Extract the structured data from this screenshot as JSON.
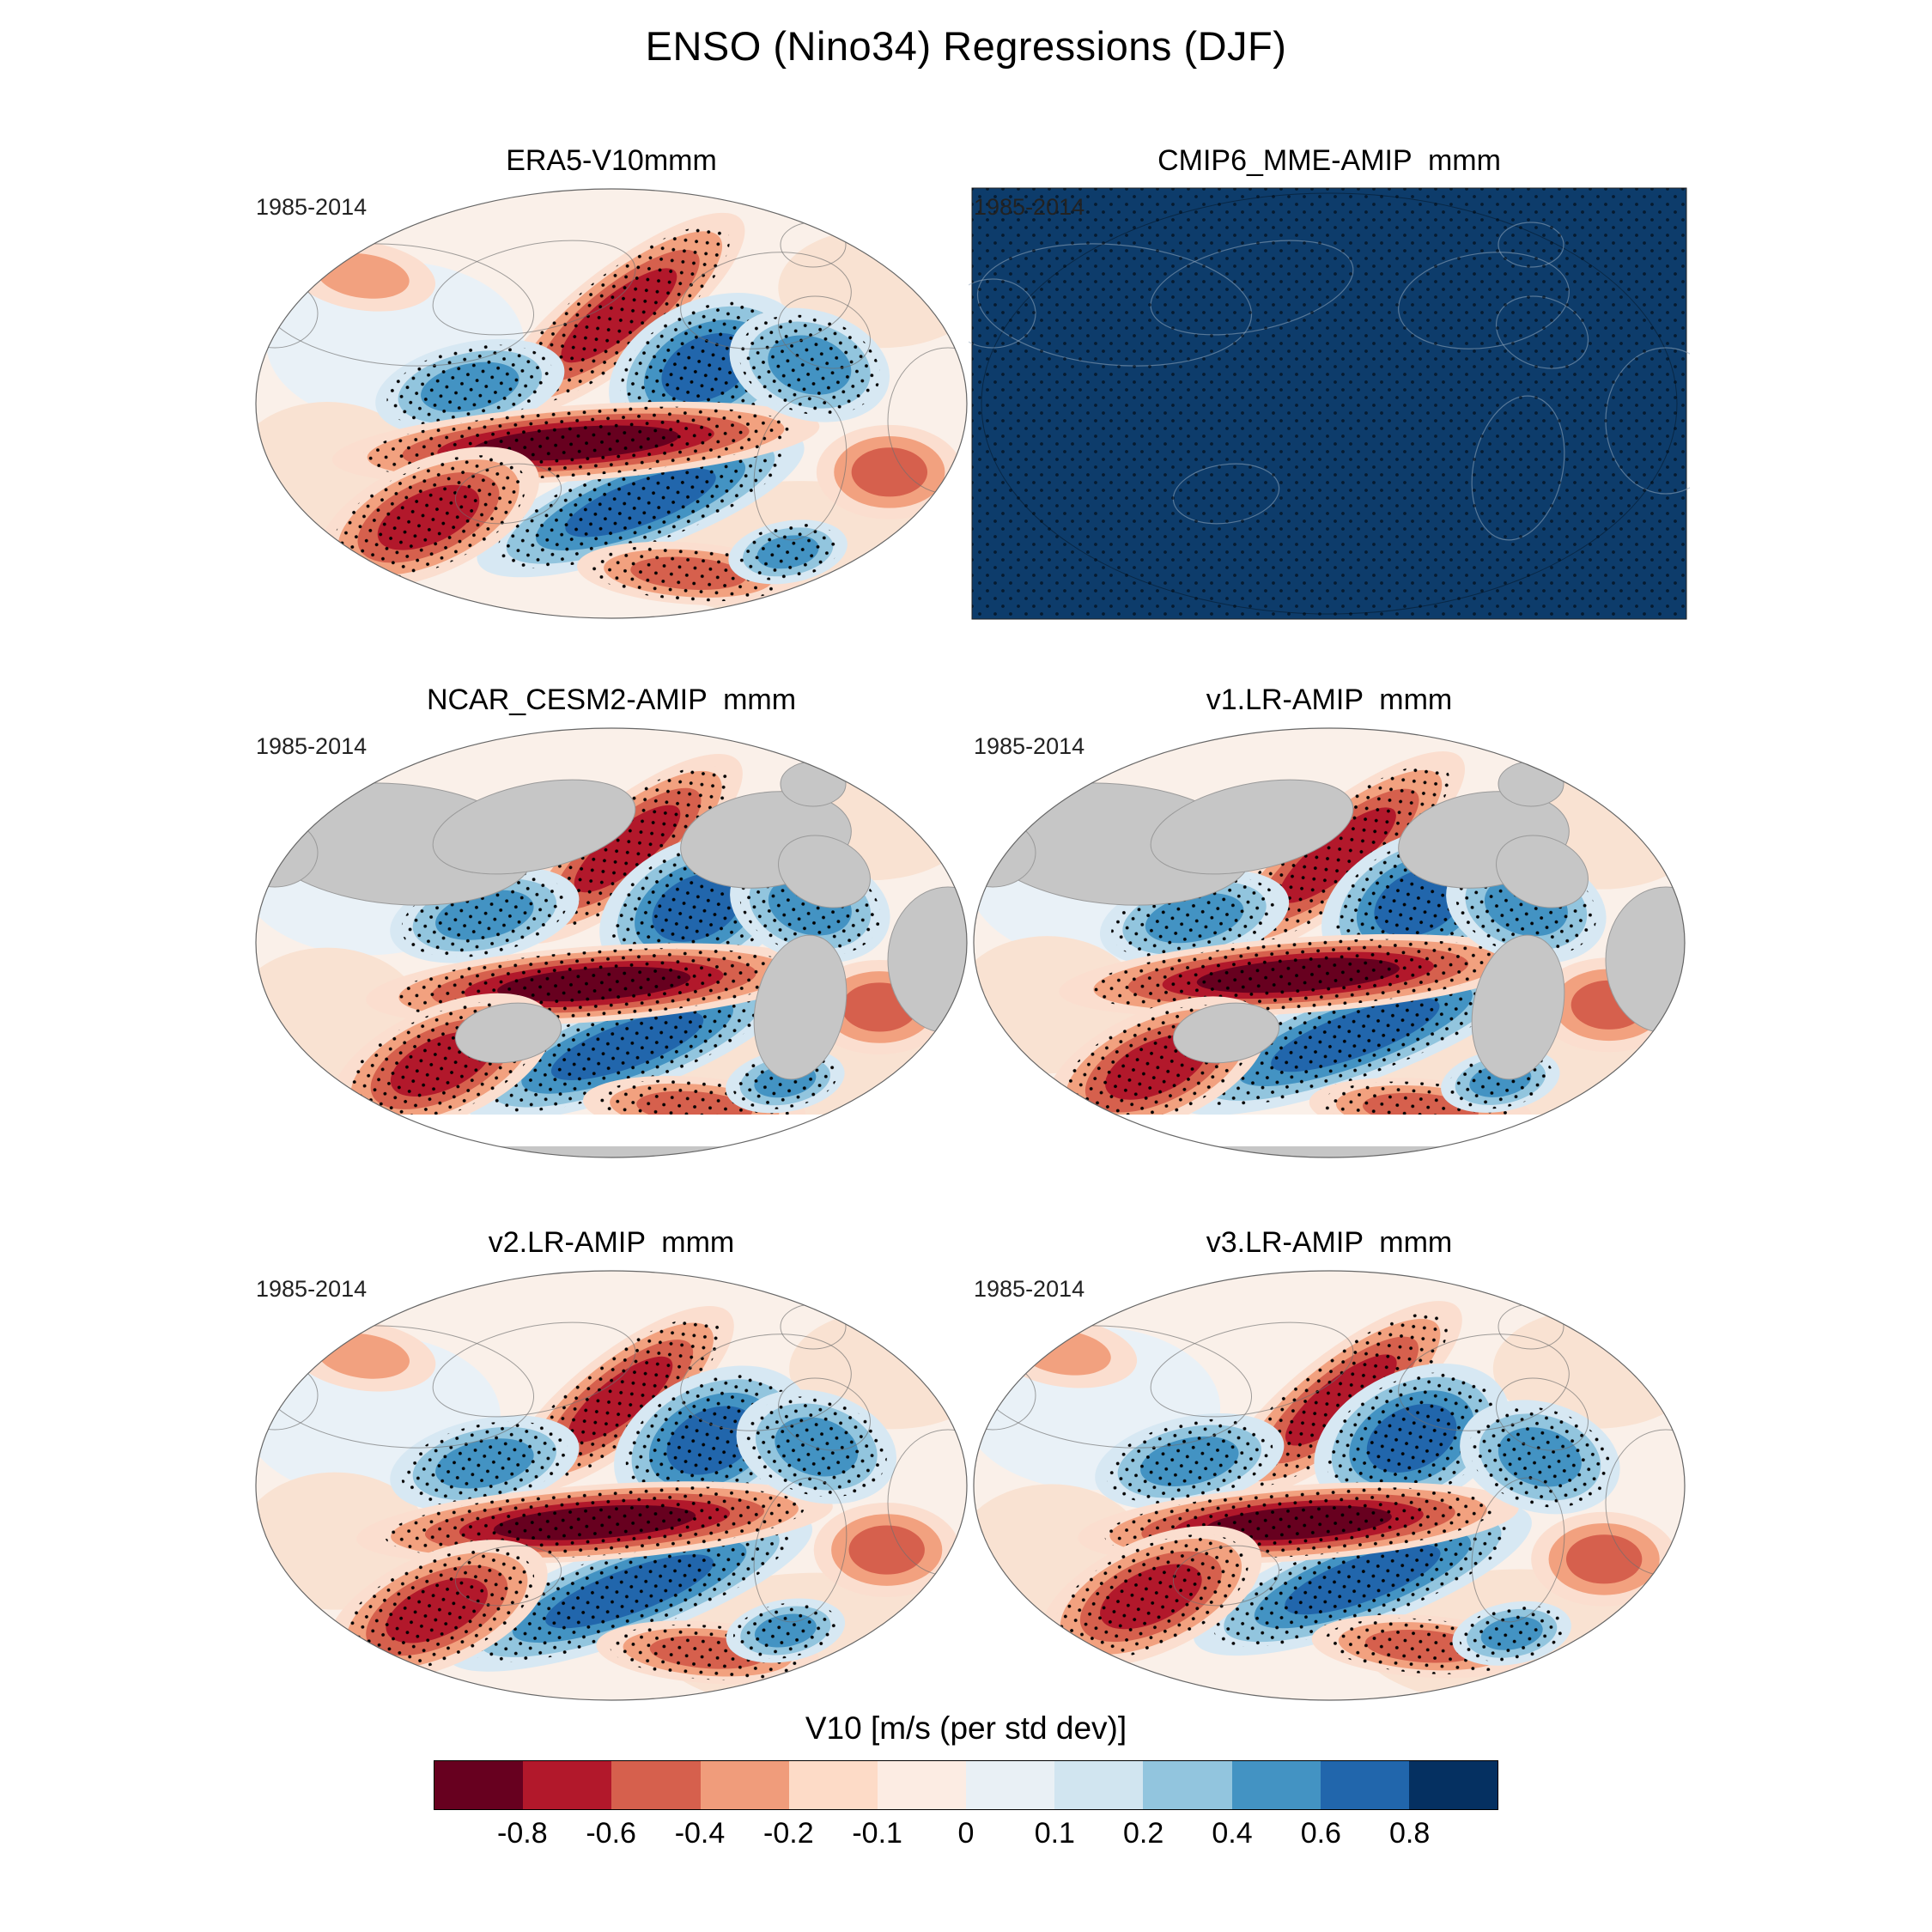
{
  "figure": {
    "title": "ENSO (Nino34) Regressions (DJF)"
  },
  "panels": [
    {
      "title": "ERA5-V10mmm",
      "period": "1985-2014",
      "variant": "plain"
    },
    {
      "title": "CMIP6_MME-AMIP  mmm",
      "period": "1985-2014",
      "variant": "solid"
    },
    {
      "title": "NCAR_CESM2-AMIP  mmm",
      "period": "1985-2014",
      "variant": "gray"
    },
    {
      "title": "v1.LR-AMIP  mmm",
      "period": "1985-2014",
      "variant": "gray"
    },
    {
      "title": "v2.LR-AMIP  mmm",
      "period": "1985-2014",
      "variant": "plain"
    },
    {
      "title": "v3.LR-AMIP  mmm",
      "period": "1985-2014",
      "variant": "plain"
    }
  ],
  "colorbar": {
    "label": "V10 [m/s (per std dev)]",
    "ticks": [
      "-0.8",
      "-0.6",
      "-0.4",
      "-0.2",
      "-0.1",
      "0",
      "0.1",
      "0.2",
      "0.4",
      "0.6",
      "0.8"
    ],
    "segment_colors": [
      "#67001f",
      "#b2182b",
      "#d6604d",
      "#f09c7b",
      "#fddbc7",
      "#fcece3",
      "#e9f0f5",
      "#d1e5f0",
      "#92c5de",
      "#4393c3",
      "#2166ac",
      "#053061"
    ]
  },
  "chart_data": {
    "type": "heatmap",
    "subtype": "global regression maps (Robinson-style projection), 2x3 panel grid with shared diverging colorbar and significance stippling",
    "title": "ENSO (Nino34) Regressions (DJF)",
    "variable": "V10",
    "units": "m/s (per std dev)",
    "season": "DJF",
    "index": "Nino34",
    "period": "1985-2014",
    "panels": [
      {
        "title": "ERA5-V10mmm",
        "period": "1985-2014",
        "appearance": "red/blue V10 regression field over land and ocean; strong positive (dark red) band along the equatorial Pacific flanked by deep blue lobes in the North and South Pacific; stippled significance regions"
      },
      {
        "title": "CMIP6_MME-AMIP  mmm",
        "period": "1985-2014",
        "appearance": "panel rendered as a uniform dark navy rectangle (field saturated at darkest blue) with faint gray coastlines and black stipple dots throughout"
      },
      {
        "title": "NCAR_CESM2-AMIP  mmm",
        "period": "1985-2014",
        "appearance": "ocean-only red/blue regression field with gray land mask, white high-latitude southern band, equatorial Pacific red band and flanking blue lobes, stippling"
      },
      {
        "title": "v1.LR-AMIP  mmm",
        "period": "1985-2014",
        "appearance": "ocean-only red/blue regression field with gray land mask, equatorial Pacific red band and flanking blue lobes, stippling"
      },
      {
        "title": "v2.LR-AMIP  mmm",
        "period": "1985-2014",
        "appearance": "red/blue regression field over land and ocean with stippling; narrow intense equatorial red band"
      },
      {
        "title": "v3.LR-AMIP  mmm",
        "period": "1985-2014",
        "appearance": "red/blue regression field over land and ocean with stippling; intense equatorial red band and large blue North Pacific lobe"
      }
    ],
    "colorbar": {
      "label": "V10 [m/s (per std dev)]",
      "orientation": "horizontal",
      "tick_values": [
        -0.8,
        -0.6,
        -0.4,
        -0.2,
        -0.1,
        0,
        0.1,
        0.2,
        0.4,
        0.6,
        0.8
      ],
      "segment_colors": [
        "#67001f",
        "#b2182b",
        "#d6604d",
        "#f09c7b",
        "#fddbc7",
        "#fcece3",
        "#e9f0f5",
        "#d1e5f0",
        "#92c5de",
        "#4393c3",
        "#2166ac",
        "#053061"
      ],
      "equal_width_segments": true
    },
    "legend_position": "bottom",
    "grid": false
  }
}
